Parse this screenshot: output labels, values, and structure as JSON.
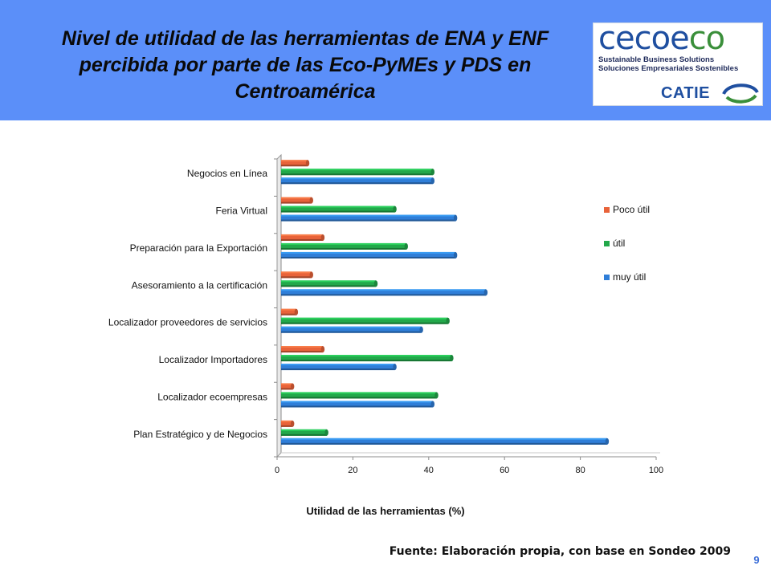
{
  "slide": {
    "title": "Nivel de utilidad de las herramientas de ENA y ENF percibida por parte de las Eco-PyMEs y PDS en Centroamérica",
    "source": "Fuente: Elaboración propia, con base en Sondeo 2009",
    "page_number": "9",
    "header_color": "#5B8FF9"
  },
  "logo": {
    "word_part1": "cecoe",
    "word_part2": "co",
    "line1": "Sustainable Business Solutions",
    "line2": "Soluciones Empresariales Sostenibles",
    "catie": "CATIE"
  },
  "chart_data": {
    "type": "bar",
    "orientation": "horizontal",
    "categories": [
      "Negocios en Línea",
      "Feria Virtual",
      "Preparación para la Exportación",
      "Asesoramiento a la certificación",
      "Localizador proveedores de servicios",
      "Localizador Importadores",
      "Localizador ecoempresas",
      "Plan Estratégico y de Negocios"
    ],
    "series": [
      {
        "name": "Poco útil",
        "color": "#E8633A",
        "values": [
          7,
          8,
          11,
          8,
          4,
          11,
          3,
          3
        ]
      },
      {
        "name": "útil",
        "color": "#22A84A",
        "values": [
          40,
          30,
          33,
          25,
          44,
          45,
          41,
          12
        ]
      },
      {
        "name": "muy útil",
        "color": "#2F7ED8",
        "values": [
          40,
          46,
          46,
          54,
          37,
          30,
          40,
          86
        ]
      }
    ],
    "xlim": [
      0,
      100
    ],
    "xticks": [
      "0",
      "20",
      "40",
      "60",
      "80",
      "100"
    ],
    "xlabel": "Utilidad de las herramientas (%)",
    "ylabel": "",
    "legend_position": "right",
    "grid": false
  }
}
